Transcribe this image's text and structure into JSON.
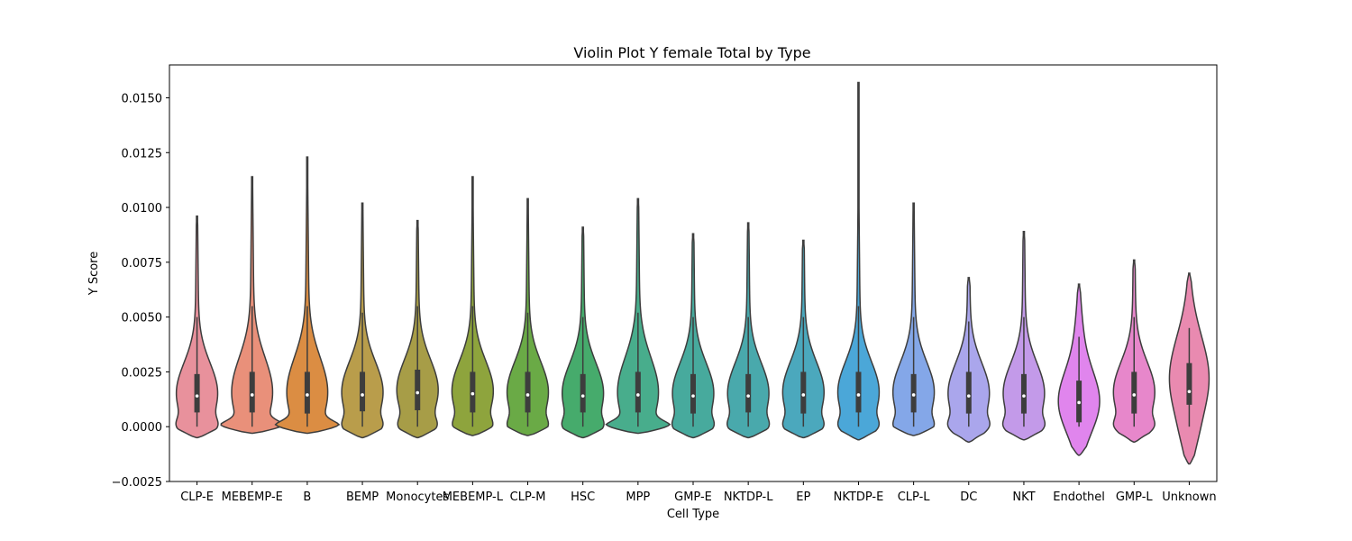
{
  "chart_data": {
    "type": "violin",
    "title": "Violin Plot Y female Total by Type",
    "xlabel": "Cell Type",
    "ylabel": "Y Score",
    "ylim": [
      -0.0025,
      0.0165
    ],
    "yticks": [
      "−0.0025",
      "0.0000",
      "0.0025",
      "0.0050",
      "0.0075",
      "0.0100",
      "0.0125",
      "0.0150"
    ],
    "yticks_values": [
      -0.0025,
      0,
      0.0025,
      0.005,
      0.0075,
      0.01,
      0.0125,
      0.015
    ],
    "grid": false,
    "categories": [
      "CLP-E",
      "MEBEMP-E",
      "B",
      "BEMP",
      "Monocytes",
      "MEBEMP-L",
      "CLP-M",
      "HSC",
      "MPP",
      "GMP-E",
      "NKTDP-L",
      "EP",
      "NKTDP-E",
      "CLP-L",
      "DC",
      "NKT",
      "Endothel",
      "GMP-L",
      "Unknown"
    ],
    "colors": [
      "#e8919c",
      "#e9907a",
      "#db8d43",
      "#b99d4b",
      "#a79d47",
      "#8ea43d",
      "#6aaa46",
      "#46ab6c",
      "#48ad8c",
      "#47aa9d",
      "#49a9ac",
      "#4ba8bd",
      "#4ba7d8",
      "#84a7e8",
      "#aaa6ec",
      "#c39ae9",
      "#e085ed",
      "#e787cb",
      "#e98ab0"
    ],
    "violins": [
      {
        "min": -0.0005,
        "max": 0.0096,
        "q1": 0.00065,
        "median": 0.0014,
        "q3": 0.0024,
        "whisk_low": 0.0,
        "whisk_high": 0.005,
        "shape": "a"
      },
      {
        "min": -0.0003,
        "max": 0.0114,
        "q1": 0.00065,
        "median": 0.00145,
        "q3": 0.0025,
        "whisk_low": 0.0,
        "whisk_high": 0.0055,
        "shape": "b"
      },
      {
        "min": -0.0003,
        "max": 0.0123,
        "q1": 0.0006,
        "median": 0.00145,
        "q3": 0.0025,
        "whisk_low": 0.0,
        "whisk_high": 0.0055,
        "shape": "b"
      },
      {
        "min": -0.0005,
        "max": 0.0102,
        "q1": 0.0007,
        "median": 0.00145,
        "q3": 0.0025,
        "whisk_low": 0.0,
        "whisk_high": 0.0052,
        "shape": "a"
      },
      {
        "min": -0.0005,
        "max": 0.0094,
        "q1": 0.00075,
        "median": 0.00155,
        "q3": 0.0026,
        "whisk_low": 0.0,
        "whisk_high": 0.0055,
        "shape": "a"
      },
      {
        "min": -0.0004,
        "max": 0.0114,
        "q1": 0.00065,
        "median": 0.0015,
        "q3": 0.0025,
        "whisk_low": 0.0,
        "whisk_high": 0.0055,
        "shape": "a"
      },
      {
        "min": -0.0004,
        "max": 0.0104,
        "q1": 0.00065,
        "median": 0.00145,
        "q3": 0.0025,
        "whisk_low": 0.0,
        "whisk_high": 0.0052,
        "shape": "a"
      },
      {
        "min": -0.0005,
        "max": 0.0091,
        "q1": 0.00065,
        "median": 0.0014,
        "q3": 0.0024,
        "whisk_low": 0.0,
        "whisk_high": 0.005,
        "shape": "a"
      },
      {
        "min": -0.0003,
        "max": 0.0104,
        "q1": 0.00065,
        "median": 0.00145,
        "q3": 0.0025,
        "whisk_low": 0.0,
        "whisk_high": 0.0052,
        "shape": "b"
      },
      {
        "min": -0.0005,
        "max": 0.0088,
        "q1": 0.0006,
        "median": 0.0014,
        "q3": 0.0024,
        "whisk_low": 0.0,
        "whisk_high": 0.005,
        "shape": "a"
      },
      {
        "min": -0.0005,
        "max": 0.0093,
        "q1": 0.00065,
        "median": 0.0014,
        "q3": 0.0024,
        "whisk_low": 0.0,
        "whisk_high": 0.005,
        "shape": "a"
      },
      {
        "min": -0.0005,
        "max": 0.0085,
        "q1": 0.0006,
        "median": 0.00145,
        "q3": 0.0025,
        "whisk_low": 0.0,
        "whisk_high": 0.005,
        "shape": "a"
      },
      {
        "min": -0.0006,
        "max": 0.0157,
        "q1": 0.00065,
        "median": 0.00145,
        "q3": 0.0025,
        "whisk_low": 0.0,
        "whisk_high": 0.0055,
        "shape": "a"
      },
      {
        "min": -0.0004,
        "max": 0.0102,
        "q1": 0.00065,
        "median": 0.00145,
        "q3": 0.0024,
        "whisk_low": 0.0,
        "whisk_high": 0.005,
        "shape": "a"
      },
      {
        "min": -0.0007,
        "max": 0.0068,
        "q1": 0.0006,
        "median": 0.0014,
        "q3": 0.0025,
        "whisk_low": 0.0,
        "whisk_high": 0.0048,
        "shape": "a"
      },
      {
        "min": -0.0006,
        "max": 0.0089,
        "q1": 0.0006,
        "median": 0.0014,
        "q3": 0.0024,
        "whisk_low": 0.0,
        "whisk_high": 0.005,
        "shape": "a"
      },
      {
        "min": -0.0013,
        "max": 0.0065,
        "q1": 0.0002,
        "median": 0.0011,
        "q3": 0.0021,
        "whisk_low": 0.0,
        "whisk_high": 0.0041,
        "shape": "c"
      },
      {
        "min": -0.0007,
        "max": 0.0076,
        "q1": 0.0006,
        "median": 0.00145,
        "q3": 0.0025,
        "whisk_low": 0.0,
        "whisk_high": 0.005,
        "shape": "a"
      },
      {
        "min": -0.0017,
        "max": 0.007,
        "q1": 0.001,
        "median": 0.0016,
        "q3": 0.0029,
        "whisk_low": 0.0,
        "whisk_high": 0.0045,
        "shape": "d"
      }
    ]
  }
}
